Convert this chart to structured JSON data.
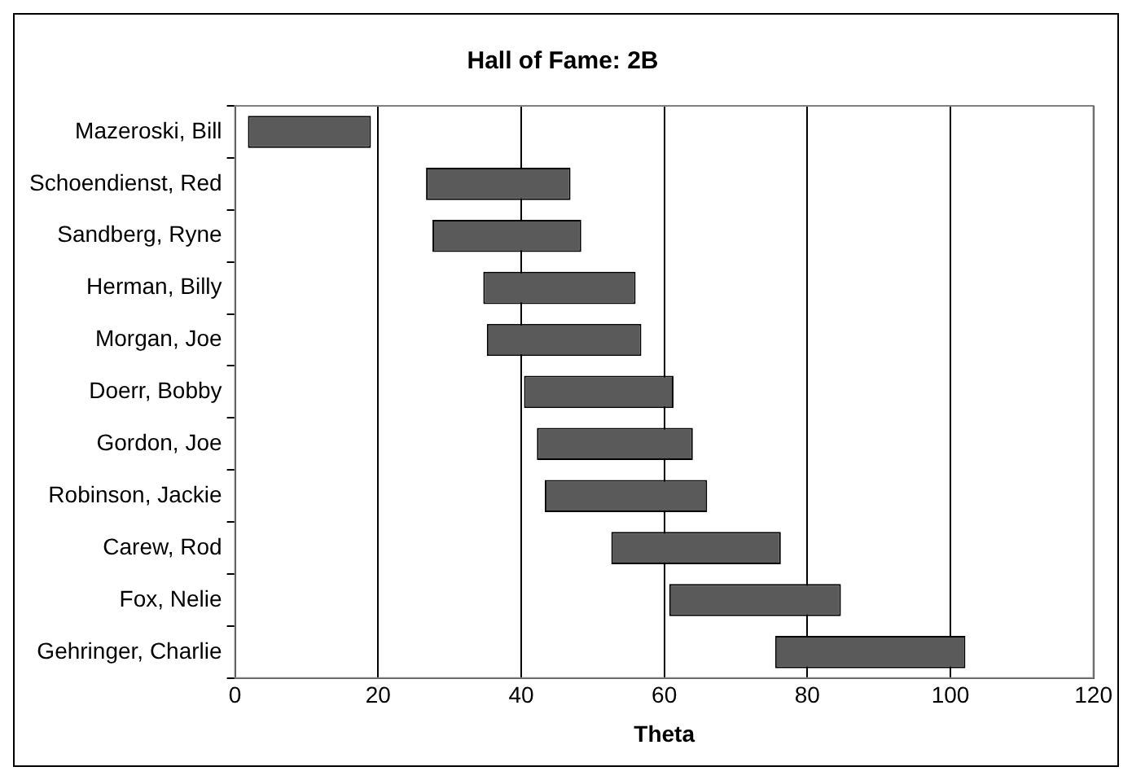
{
  "chart_data": {
    "type": "bar",
    "orientation": "horizontal",
    "title": "Hall of Fame: 2B",
    "xlabel": "Theta",
    "categories": [
      "Mazeroski, Bill",
      "Schoendienst, Red",
      "Sandberg, Ryne",
      "Herman, Billy",
      "Morgan, Joe",
      "Doerr, Bobby",
      "Gordon, Joe",
      "Robinson, Jackie",
      "Carew, Rod",
      "Fox, Nelie",
      "Gehringer, Charlie"
    ],
    "base": [
      1.8,
      26.7,
      27.6,
      34.7,
      35.2,
      40.4,
      42.2,
      43.3,
      52.6,
      60.7,
      75.5
    ],
    "values": [
      17.2,
      20.2,
      20.8,
      21.3,
      21.6,
      20.9,
      21.8,
      22.7,
      23.7,
      24.0,
      26.6
    ],
    "color": "#5a5a5a",
    "xlim": [
      0,
      120
    ],
    "xticks": [
      0,
      20,
      40,
      60,
      80,
      100,
      120
    ],
    "grid": "x",
    "legend": false
  }
}
